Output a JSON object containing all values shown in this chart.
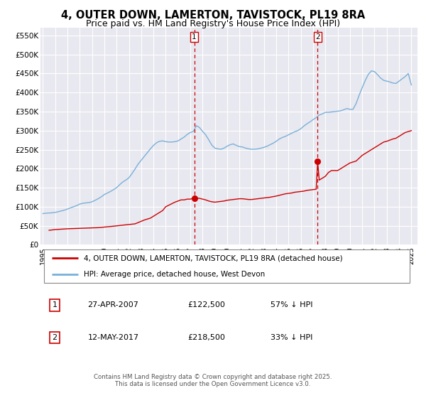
{
  "title": "4, OUTER DOWN, LAMERTON, TAVISTOCK, PL19 8RA",
  "subtitle": "Price paid vs. HM Land Registry's House Price Index (HPI)",
  "ylabel_ticks": [
    "£0",
    "£50K",
    "£100K",
    "£150K",
    "£200K",
    "£250K",
    "£300K",
    "£350K",
    "£400K",
    "£450K",
    "£500K",
    "£550K"
  ],
  "ytick_values": [
    0,
    50000,
    100000,
    150000,
    200000,
    250000,
    300000,
    350000,
    400000,
    450000,
    500000,
    550000
  ],
  "ylim": [
    0,
    570000
  ],
  "xlim_start": 1994.8,
  "xlim_end": 2025.5,
  "background_color": "#ffffff",
  "plot_bg_color": "#e8e8f0",
  "grid_color": "#ffffff",
  "hpi_color": "#7ab0d8",
  "price_color": "#cc0000",
  "marker1_date": 2007.32,
  "marker2_date": 2017.37,
  "marker1_price": 122500,
  "marker2_price": 218500,
  "legend_price_label": "4, OUTER DOWN, LAMERTON, TAVISTOCK, PL19 8RA (detached house)",
  "legend_hpi_label": "HPI: Average price, detached house, West Devon",
  "table_rows": [
    {
      "num": "1",
      "date": "27-APR-2007",
      "price": "£122,500",
      "hpi": "57% ↓ HPI"
    },
    {
      "num": "2",
      "date": "12-MAY-2017",
      "price": "£218,500",
      "hpi": "33% ↓ HPI"
    }
  ],
  "footer": "Contains HM Land Registry data © Crown copyright and database right 2025.\nThis data is licensed under the Open Government Licence v3.0.",
  "hpi_x": [
    1995.0,
    1995.25,
    1995.5,
    1995.75,
    1996.0,
    1996.25,
    1996.5,
    1996.75,
    1997.0,
    1997.25,
    1997.5,
    1997.75,
    1998.0,
    1998.25,
    1998.5,
    1998.75,
    1999.0,
    1999.25,
    1999.5,
    1999.75,
    2000.0,
    2000.25,
    2000.5,
    2000.75,
    2001.0,
    2001.25,
    2001.5,
    2001.75,
    2002.0,
    2002.25,
    2002.5,
    2002.75,
    2003.0,
    2003.25,
    2003.5,
    2003.75,
    2004.0,
    2004.25,
    2004.5,
    2004.75,
    2005.0,
    2005.25,
    2005.5,
    2005.75,
    2006.0,
    2006.25,
    2006.5,
    2006.75,
    2007.0,
    2007.25,
    2007.5,
    2007.75,
    2008.0,
    2008.25,
    2008.5,
    2008.75,
    2009.0,
    2009.25,
    2009.5,
    2009.75,
    2010.0,
    2010.25,
    2010.5,
    2010.75,
    2011.0,
    2011.25,
    2011.5,
    2011.75,
    2012.0,
    2012.25,
    2012.5,
    2012.75,
    2013.0,
    2013.25,
    2013.5,
    2013.75,
    2014.0,
    2014.25,
    2014.5,
    2014.75,
    2015.0,
    2015.25,
    2015.5,
    2015.75,
    2016.0,
    2016.25,
    2016.5,
    2016.75,
    2017.0,
    2017.25,
    2017.5,
    2017.75,
    2018.0,
    2018.25,
    2018.5,
    2018.75,
    2019.0,
    2019.25,
    2019.5,
    2019.75,
    2020.0,
    2020.25,
    2020.5,
    2020.75,
    2021.0,
    2021.25,
    2021.5,
    2021.75,
    2022.0,
    2022.25,
    2022.5,
    2022.75,
    2023.0,
    2023.25,
    2023.5,
    2023.75,
    2024.0,
    2024.25,
    2024.5,
    2024.75,
    2025.0
  ],
  "hpi_y": [
    82000,
    83000,
    83500,
    84000,
    85000,
    87000,
    89000,
    91000,
    94000,
    97000,
    100000,
    103000,
    107000,
    109000,
    110000,
    111000,
    113000,
    117000,
    121000,
    126000,
    132000,
    136000,
    140000,
    145000,
    150000,
    158000,
    165000,
    170000,
    176000,
    187000,
    199000,
    212000,
    222000,
    232000,
    242000,
    252000,
    261000,
    268000,
    272000,
    273000,
    271000,
    270000,
    270000,
    271000,
    273000,
    278000,
    283000,
    290000,
    295000,
    298000,
    313000,
    308000,
    298000,
    289000,
    276000,
    262000,
    254000,
    252000,
    251000,
    254000,
    259000,
    263000,
    265000,
    261000,
    258000,
    257000,
    254000,
    252000,
    251000,
    251000,
    252000,
    254000,
    256000,
    259000,
    263000,
    267000,
    272000,
    278000,
    282000,
    285000,
    289000,
    293000,
    297000,
    300000,
    305000,
    312000,
    318000,
    323000,
    329000,
    334000,
    341000,
    344000,
    348000,
    348000,
    349000,
    350000,
    351000,
    352000,
    355000,
    358000,
    356000,
    356000,
    371000,
    393000,
    413000,
    432000,
    448000,
    457000,
    455000,
    447000,
    438000,
    432000,
    430000,
    428000,
    425000,
    424000,
    430000,
    436000,
    442000,
    450000,
    420000
  ],
  "price_x": [
    1995.5,
    1996.0,
    1997.0,
    1999.5,
    2000.5,
    2002.5,
    2003.25,
    2003.75,
    2004.25,
    2004.75,
    2005.0,
    2005.5,
    2005.75,
    2006.0,
    2006.25,
    2006.5,
    2006.75,
    2007.0,
    2007.32,
    2007.75,
    2008.0,
    2008.25,
    2008.5,
    2008.75,
    2009.0,
    2009.25,
    2009.5,
    2009.75,
    2010.0,
    2010.25,
    2010.5,
    2010.75,
    2011.0,
    2011.25,
    2011.5,
    2011.75,
    2012.0,
    2012.25,
    2012.75,
    2013.0,
    2013.5,
    2014.0,
    2014.5,
    2014.75,
    2015.0,
    2015.25,
    2015.5,
    2015.75,
    2016.0,
    2016.25,
    2016.5,
    2016.75,
    2017.0,
    2017.25,
    2017.37,
    2017.5,
    2017.75,
    2018.0,
    2018.25,
    2018.5,
    2018.75,
    2019.0,
    2019.25,
    2019.5,
    2019.75,
    2020.0,
    2020.5,
    2021.0,
    2021.25,
    2021.5,
    2022.0,
    2022.5,
    2022.75,
    2023.0,
    2023.25,
    2023.5,
    2023.75,
    2024.0,
    2024.25,
    2024.5,
    2025.0
  ],
  "price_y": [
    38000,
    40000,
    42000,
    45000,
    48000,
    55000,
    65000,
    70000,
    80000,
    90000,
    100000,
    108000,
    112000,
    115000,
    118000,
    118000,
    120000,
    120000,
    122500,
    122000,
    120000,
    118000,
    115000,
    113000,
    112000,
    113000,
    114000,
    115000,
    117000,
    118000,
    119000,
    120000,
    121000,
    121000,
    120000,
    119000,
    119000,
    120000,
    122000,
    123000,
    125000,
    128000,
    132000,
    134000,
    135000,
    136000,
    138000,
    139000,
    140000,
    141000,
    143000,
    144000,
    145000,
    146000,
    218500,
    170000,
    175000,
    180000,
    190000,
    195000,
    195000,
    195000,
    200000,
    205000,
    210000,
    215000,
    220000,
    235000,
    240000,
    245000,
    255000,
    265000,
    270000,
    272000,
    275000,
    278000,
    280000,
    285000,
    290000,
    295000,
    300000
  ]
}
